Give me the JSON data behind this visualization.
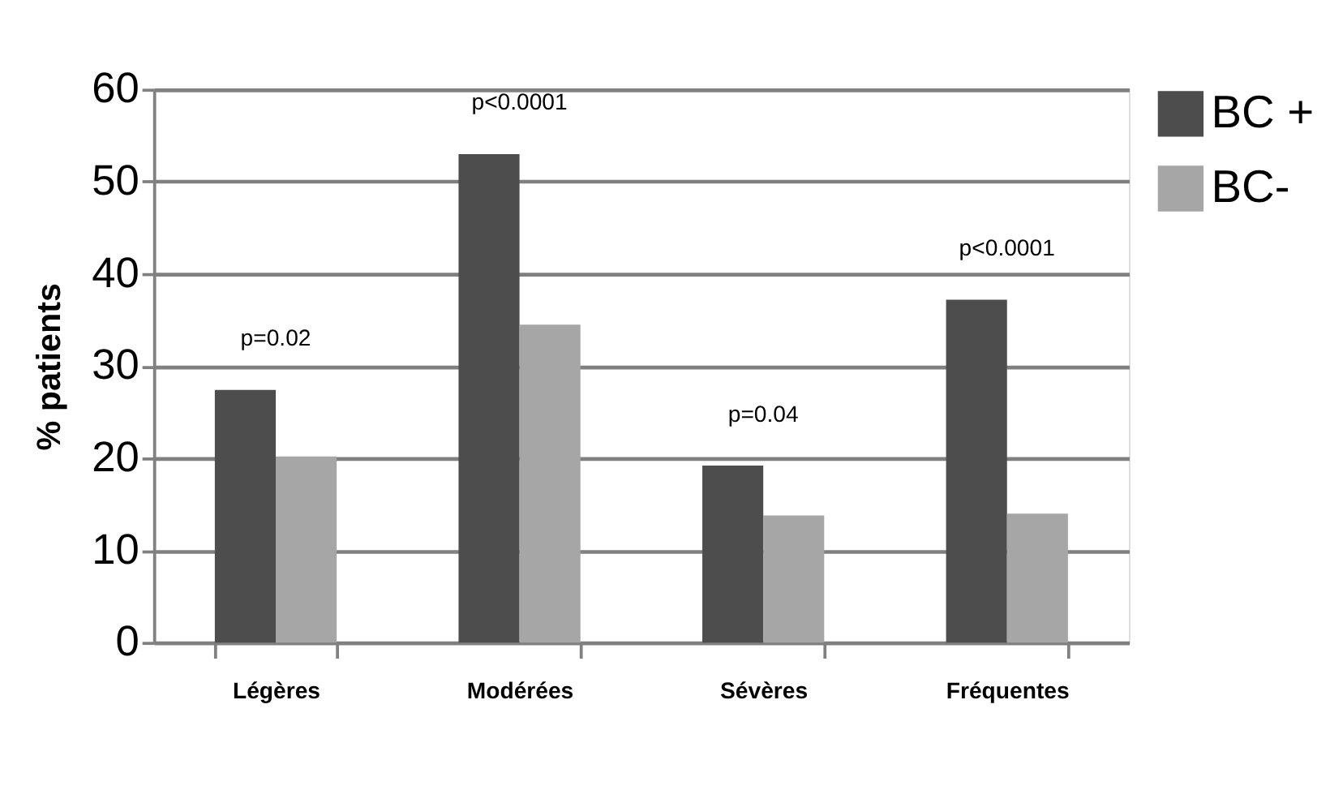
{
  "chart_data": {
    "type": "bar",
    "ylabel": "% patients",
    "categories": [
      "Légères",
      "Modérées",
      "Sévères",
      "Fréquentes"
    ],
    "series": [
      {
        "name": "BC +",
        "color": "#4d4d4d",
        "values": [
          27.4,
          53.0,
          19.2,
          37.2
        ]
      },
      {
        "name": "BC-",
        "color": "#a6a6a6",
        "values": [
          20.2,
          34.5,
          13.8,
          14.0
        ]
      }
    ],
    "ylim": [
      0,
      60
    ],
    "yticks": [
      0,
      10,
      20,
      30,
      40,
      50,
      60
    ],
    "grid": "y",
    "legend": "right",
    "annotations": [
      "p=0.02",
      "p<0.0001",
      "p=0.04",
      "p<0.0001"
    ]
  }
}
